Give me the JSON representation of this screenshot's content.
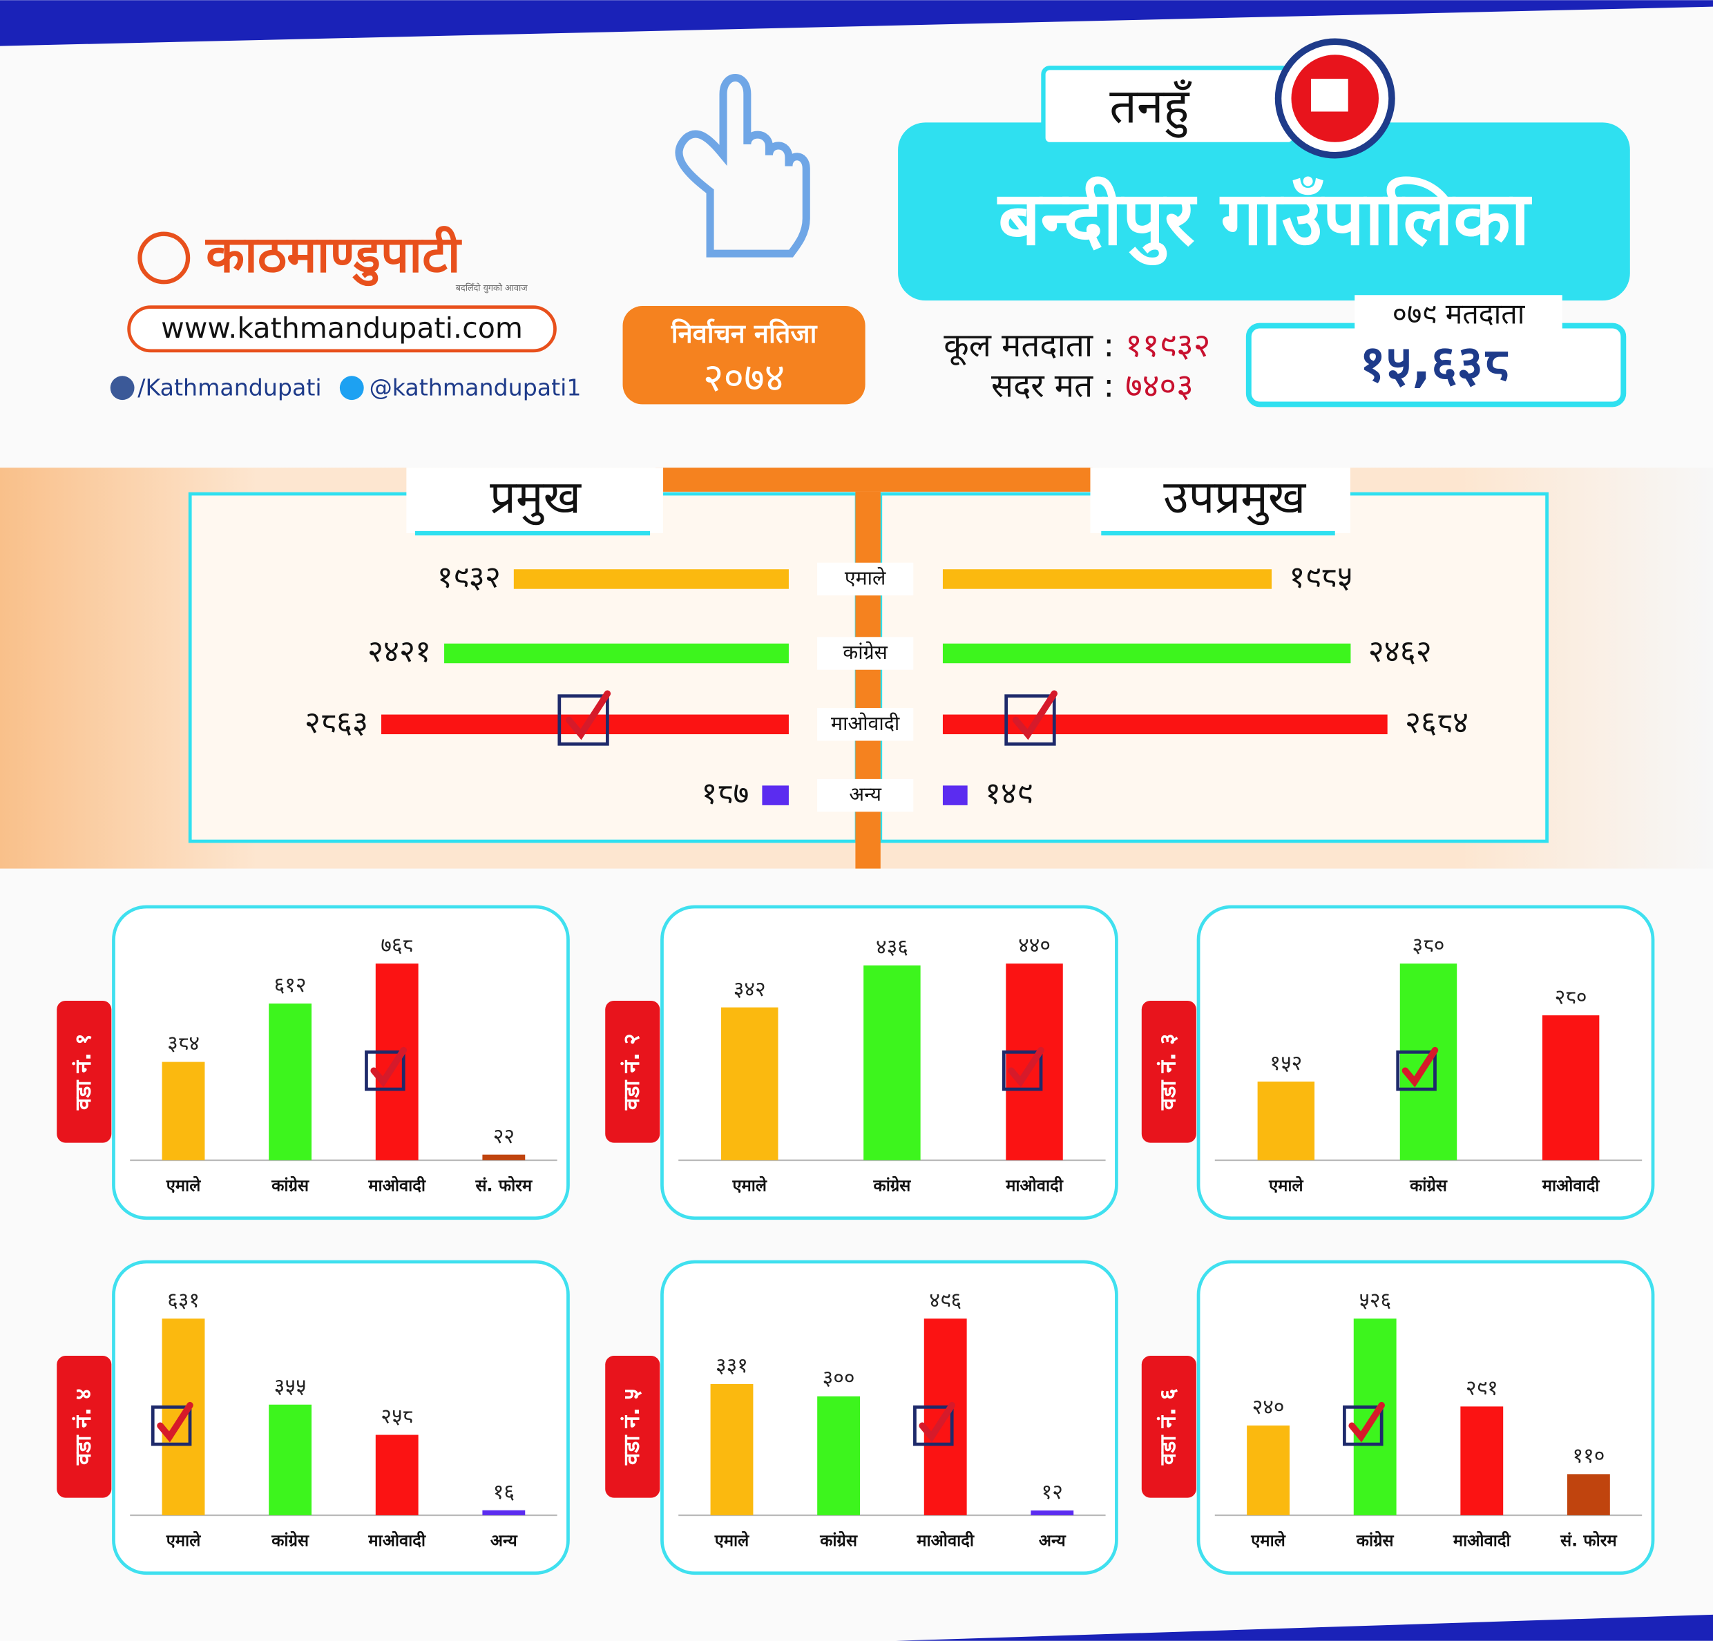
{
  "header": {
    "district": "तनहुँ",
    "municipality": "बन्दीपुर गाउँपालिका",
    "brand": "काठमाण्डुपाटी",
    "tagline": "बदलिँदो युगको आवाज",
    "website": "www.kathmandupati.com",
    "facebook": "/Kathmandupati",
    "twitter": "@kathmandupati1",
    "result_label": "निर्वाचन नतिजा",
    "result_year": "२०७४",
    "total_voters_label": "कूल मतदाता :",
    "total_voters": "११९३२",
    "valid_votes_label": "सदर मत :",
    "valid_votes": "७४०३",
    "voters_079_label": "०७९ मतदाता",
    "voters_079": "१५,६३८"
  },
  "chart_data": [
    {
      "type": "hbar",
      "title": "प्रमुख",
      "categories": [
        "एमाले",
        "कांग्रेस",
        "माओवादी",
        "अन्य"
      ],
      "values": [
        1932,
        2421,
        2863,
        187
      ],
      "value_labels": [
        "१९३२",
        "२४२१",
        "२८६३",
        "१८७"
      ],
      "colors": [
        "#fbb90f",
        "#3df51d",
        "#fb1313",
        "#5b2cf0"
      ],
      "winner": 2
    },
    {
      "type": "hbar",
      "title": "उपप्रमुख",
      "values": [
        1985,
        2462,
        2684,
        149
      ],
      "value_labels": [
        "१९८५",
        "२४६२",
        "२६८४",
        "१४९"
      ],
      "colors": [
        "#fbb90f",
        "#3df51d",
        "#fb1313",
        "#5b2cf0"
      ],
      "winner": 2
    },
    {
      "type": "bar",
      "title": "वडा नं. १",
      "categories": [
        "एमाले",
        "कांग्रेस",
        "माओवादी",
        "सं. फोरम"
      ],
      "values": [
        384,
        612,
        768,
        22
      ],
      "value_labels": [
        "३८४",
        "६१२",
        "७६८",
        "२२"
      ],
      "colors": [
        "#fbb90f",
        "#3df51d",
        "#fb1313",
        "#c0440e"
      ],
      "winner": 2
    },
    {
      "type": "bar",
      "title": "वडा नं. २",
      "categories": [
        "एमाले",
        "कांग्रेस",
        "माओवादी"
      ],
      "values": [
        342,
        436,
        440
      ],
      "value_labels": [
        "३४२",
        "४३६",
        "४४०"
      ],
      "colors": [
        "#fbb90f",
        "#3df51d",
        "#fb1313"
      ],
      "winner": 2
    },
    {
      "type": "bar",
      "title": "वडा नं. ३",
      "categories": [
        "एमाले",
        "कांग्रेस",
        "माओवादी"
      ],
      "values": [
        152,
        380,
        280
      ],
      "value_labels": [
        "१५२",
        "३८०",
        "२८०"
      ],
      "colors": [
        "#fbb90f",
        "#3df51d",
        "#fb1313"
      ],
      "winner": 1
    },
    {
      "type": "bar",
      "title": "वडा नं. ४",
      "categories": [
        "एमाले",
        "कांग्रेस",
        "माओवादी",
        "अन्य"
      ],
      "values": [
        631,
        355,
        258,
        16
      ],
      "value_labels": [
        "६३१",
        "३५५",
        "२५८",
        "१६"
      ],
      "colors": [
        "#fbb90f",
        "#3df51d",
        "#fb1313",
        "#5b2cf0"
      ],
      "winner": 0
    },
    {
      "type": "bar",
      "title": "वडा नं. ५",
      "categories": [
        "एमाले",
        "कांग्रेस",
        "माओवादी",
        "अन्य"
      ],
      "values": [
        331,
        300,
        496,
        12
      ],
      "value_labels": [
        "३३१",
        "३००",
        "४९६",
        "१२"
      ],
      "colors": [
        "#fbb90f",
        "#3df51d",
        "#fb1313",
        "#5b2cf0"
      ],
      "winner": 2
    },
    {
      "type": "bar",
      "title": "वडा नं. ६",
      "categories": [
        "एमाले",
        "कांग्रेस",
        "माओवादी",
        "सं. फोरम"
      ],
      "values": [
        240,
        526,
        291,
        110
      ],
      "value_labels": [
        "२४०",
        "५२६",
        "२९१",
        "११०"
      ],
      "colors": [
        "#fbb90f",
        "#3df51d",
        "#fb1313",
        "#c0440e"
      ],
      "winner": 1
    }
  ]
}
